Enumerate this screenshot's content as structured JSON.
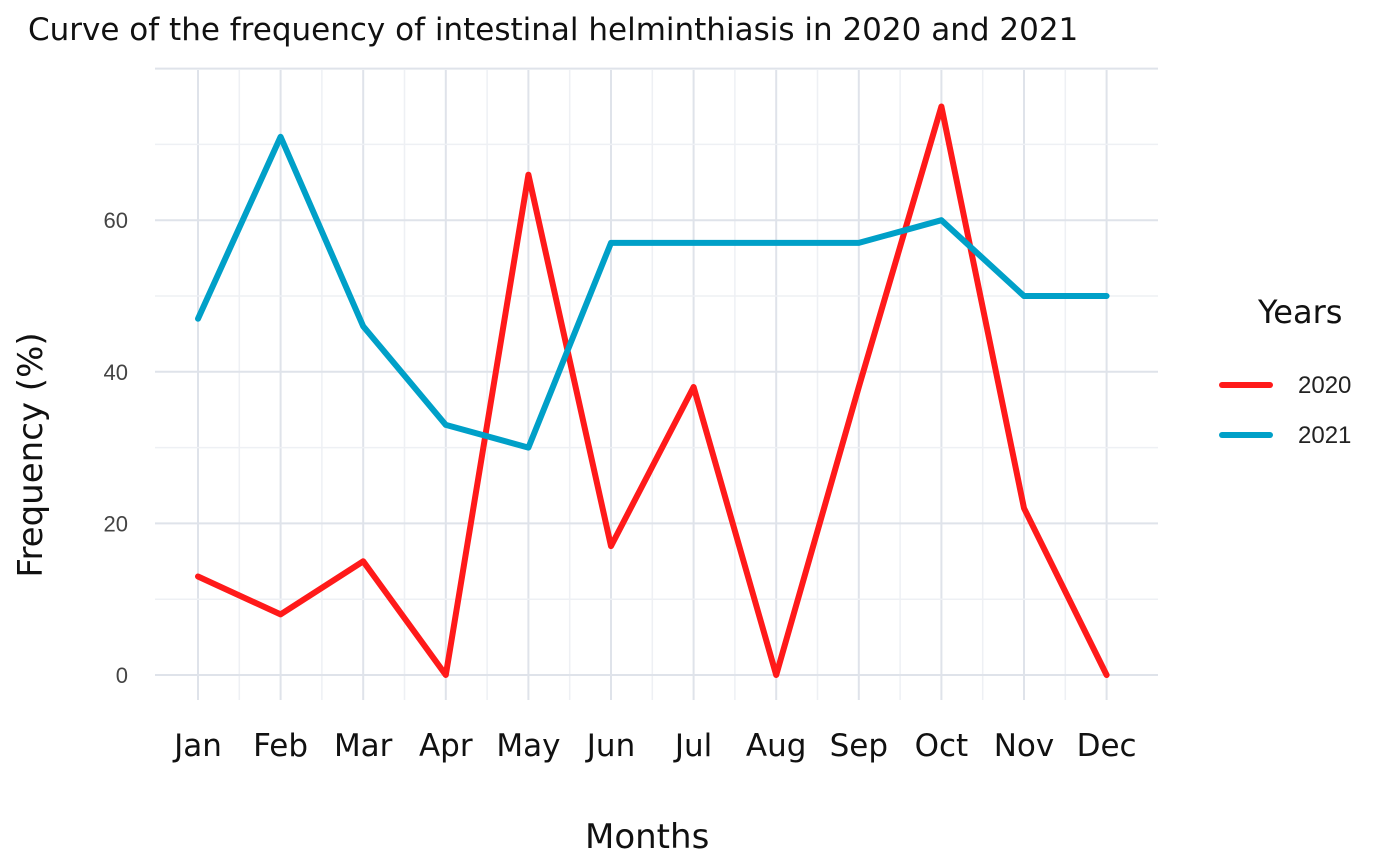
{
  "chart_data": {
    "type": "line",
    "title": "Curve of the frequency of intestinal helminthiasis in 2020 and 2021",
    "xlabel": "Months",
    "ylabel": "Frequency (%)",
    "categories": [
      "Jan",
      "Feb",
      "Mar",
      "Apr",
      "May",
      "Jun",
      "Jul",
      "Aug",
      "Sep",
      "Oct",
      "Nov",
      "Dec"
    ],
    "y_ticks": [
      0,
      20,
      40,
      60
    ],
    "ylim": [
      0,
      80
    ],
    "grid": true,
    "legend": {
      "title": "Years",
      "placement": "right"
    },
    "series": [
      {
        "name": "2020",
        "color": "#ff1a1a",
        "values": [
          13,
          8,
          15,
          0,
          66,
          17,
          38,
          0,
          38,
          75,
          22,
          0
        ]
      },
      {
        "name": "2021",
        "color": "#00a0c8",
        "values": [
          47,
          71,
          46,
          33,
          30,
          57,
          57,
          57,
          57,
          60,
          50,
          50
        ]
      }
    ]
  }
}
